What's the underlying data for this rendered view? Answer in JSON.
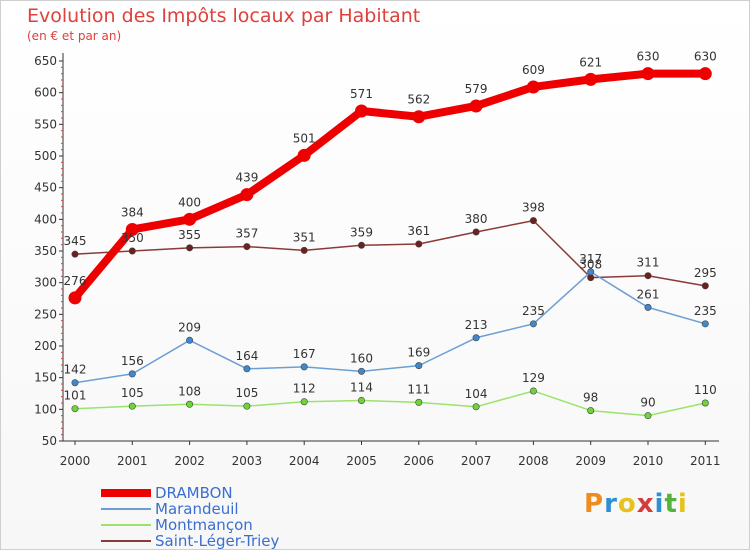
{
  "title": "Evolution des Impôts locaux par Habitant",
  "subtitle": "(en € et par an)",
  "brand": {
    "text": "Proxiti",
    "colors": [
      "#f08b1e",
      "#2e8fd4",
      "#e8c21c",
      "#d63a3a",
      "#2e8fd4",
      "#55b33d",
      "#e8c21c"
    ]
  },
  "chart_data": {
    "type": "line",
    "x": [
      "2000",
      "2001",
      "2002",
      "2003",
      "2004",
      "2005",
      "2006",
      "2007",
      "2008",
      "2009",
      "2010",
      "2011"
    ],
    "ylim": [
      50,
      650
    ],
    "yticks": [
      50,
      100,
      150,
      200,
      250,
      300,
      350,
      400,
      450,
      500,
      550,
      600,
      650
    ],
    "grid": false,
    "legend_position": "bottom-left",
    "series": [
      {
        "name": "DRAMBON",
        "color": "#ee0000",
        "marker_color": "#ee0000",
        "values": [
          276,
          384,
          400,
          439,
          501,
          571,
          562,
          579,
          609,
          621,
          630,
          630
        ]
      },
      {
        "name": "Marandeuil",
        "color": "#6b9fd3",
        "marker_color": "#3f87cf",
        "values": [
          142,
          156,
          209,
          164,
          167,
          160,
          169,
          213,
          235,
          317,
          261,
          235
        ]
      },
      {
        "name": "Montmançon",
        "color": "#9be36a",
        "marker_color": "#6fd33b",
        "values": [
          101,
          105,
          108,
          105,
          112,
          114,
          111,
          104,
          129,
          98,
          90,
          110
        ]
      },
      {
        "name": "Saint-Léger-Triey",
        "color": "#8b3a3a",
        "marker_color": "#6e1f1f",
        "values": [
          345,
          350,
          355,
          357,
          351,
          359,
          361,
          380,
          398,
          308,
          311,
          295
        ]
      }
    ]
  }
}
